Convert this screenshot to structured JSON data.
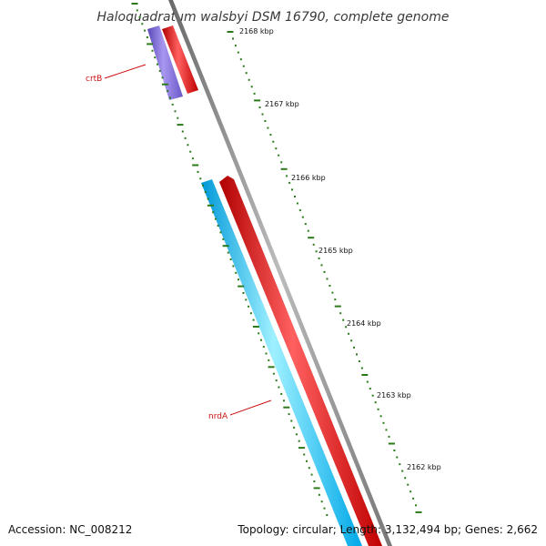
{
  "title": "Haloquadratum walsbyi DSM 16790, complete genome",
  "footer": {
    "accession": "Accession: NC_008212",
    "summary": "Topology: circular; Length: 3,132,494 bp; Genes: 2,662"
  },
  "scale_labels": [
    "2168 kbp",
    "2167 kbp",
    "2166 kbp",
    "2165 kbp",
    "2164 kbp",
    "2163 kbp",
    "2162 kbp"
  ],
  "gene_labels": [
    {
      "name": "crtB",
      "color": "#cc1111"
    },
    {
      "name": "nrdA",
      "color": "#cc1111"
    }
  ],
  "colors": {
    "backbone": "#888888",
    "forward_cds": "#ff0000",
    "reverse_cds": "#00bfff",
    "crtB_gene": "#7d6ad6",
    "tick": "#2a7a1a",
    "label_line": "#cc1111"
  }
}
